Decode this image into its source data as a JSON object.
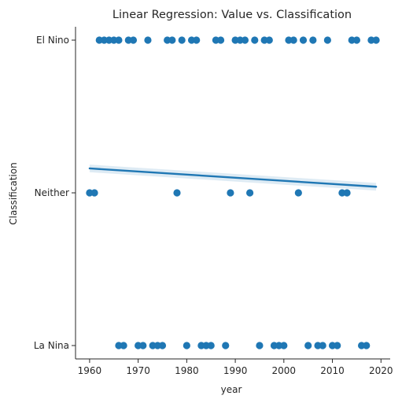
{
  "chart_data": {
    "type": "scatter",
    "title": "Linear Regression: Value vs. Classification",
    "xlabel": "year",
    "ylabel": "Classification",
    "xlim": [
      1957.1,
      2021.9
    ],
    "xticks": [
      1960,
      1970,
      1980,
      1990,
      2000,
      2010,
      2020
    ],
    "categories": [
      "La Nina",
      "Neither",
      "El Nino"
    ],
    "grid": false,
    "point_color": "#1f77b4",
    "line_color": "#1f77b4",
    "band_color": "#1f77b4",
    "regression": {
      "x": [
        1960,
        2019
      ],
      "y": [
        1.16,
        1.04
      ],
      "ci_halfwidth": [
        0.025,
        0.025
      ]
    },
    "points": {
      "El Nino": [
        1962,
        1963,
        1964,
        1965,
        1966,
        1968,
        1969,
        1972,
        1976,
        1977,
        1979,
        1981,
        1982,
        1986,
        1987,
        1990,
        1991,
        1992,
        1994,
        1996,
        1997,
        2001,
        2002,
        2004,
        2006,
        2009,
        2014,
        2015,
        2018,
        2019
      ],
      "Neither": [
        1960,
        1961,
        1978,
        1989,
        1993,
        2003,
        2012,
        2013
      ],
      "La Nina": [
        1966,
        1967,
        1970,
        1971,
        1973,
        1974,
        1975,
        1980,
        1983,
        1984,
        1985,
        1988,
        1995,
        1998,
        1999,
        2000,
        2005,
        2007,
        2008,
        2010,
        2011,
        2016,
        2017
      ]
    }
  }
}
